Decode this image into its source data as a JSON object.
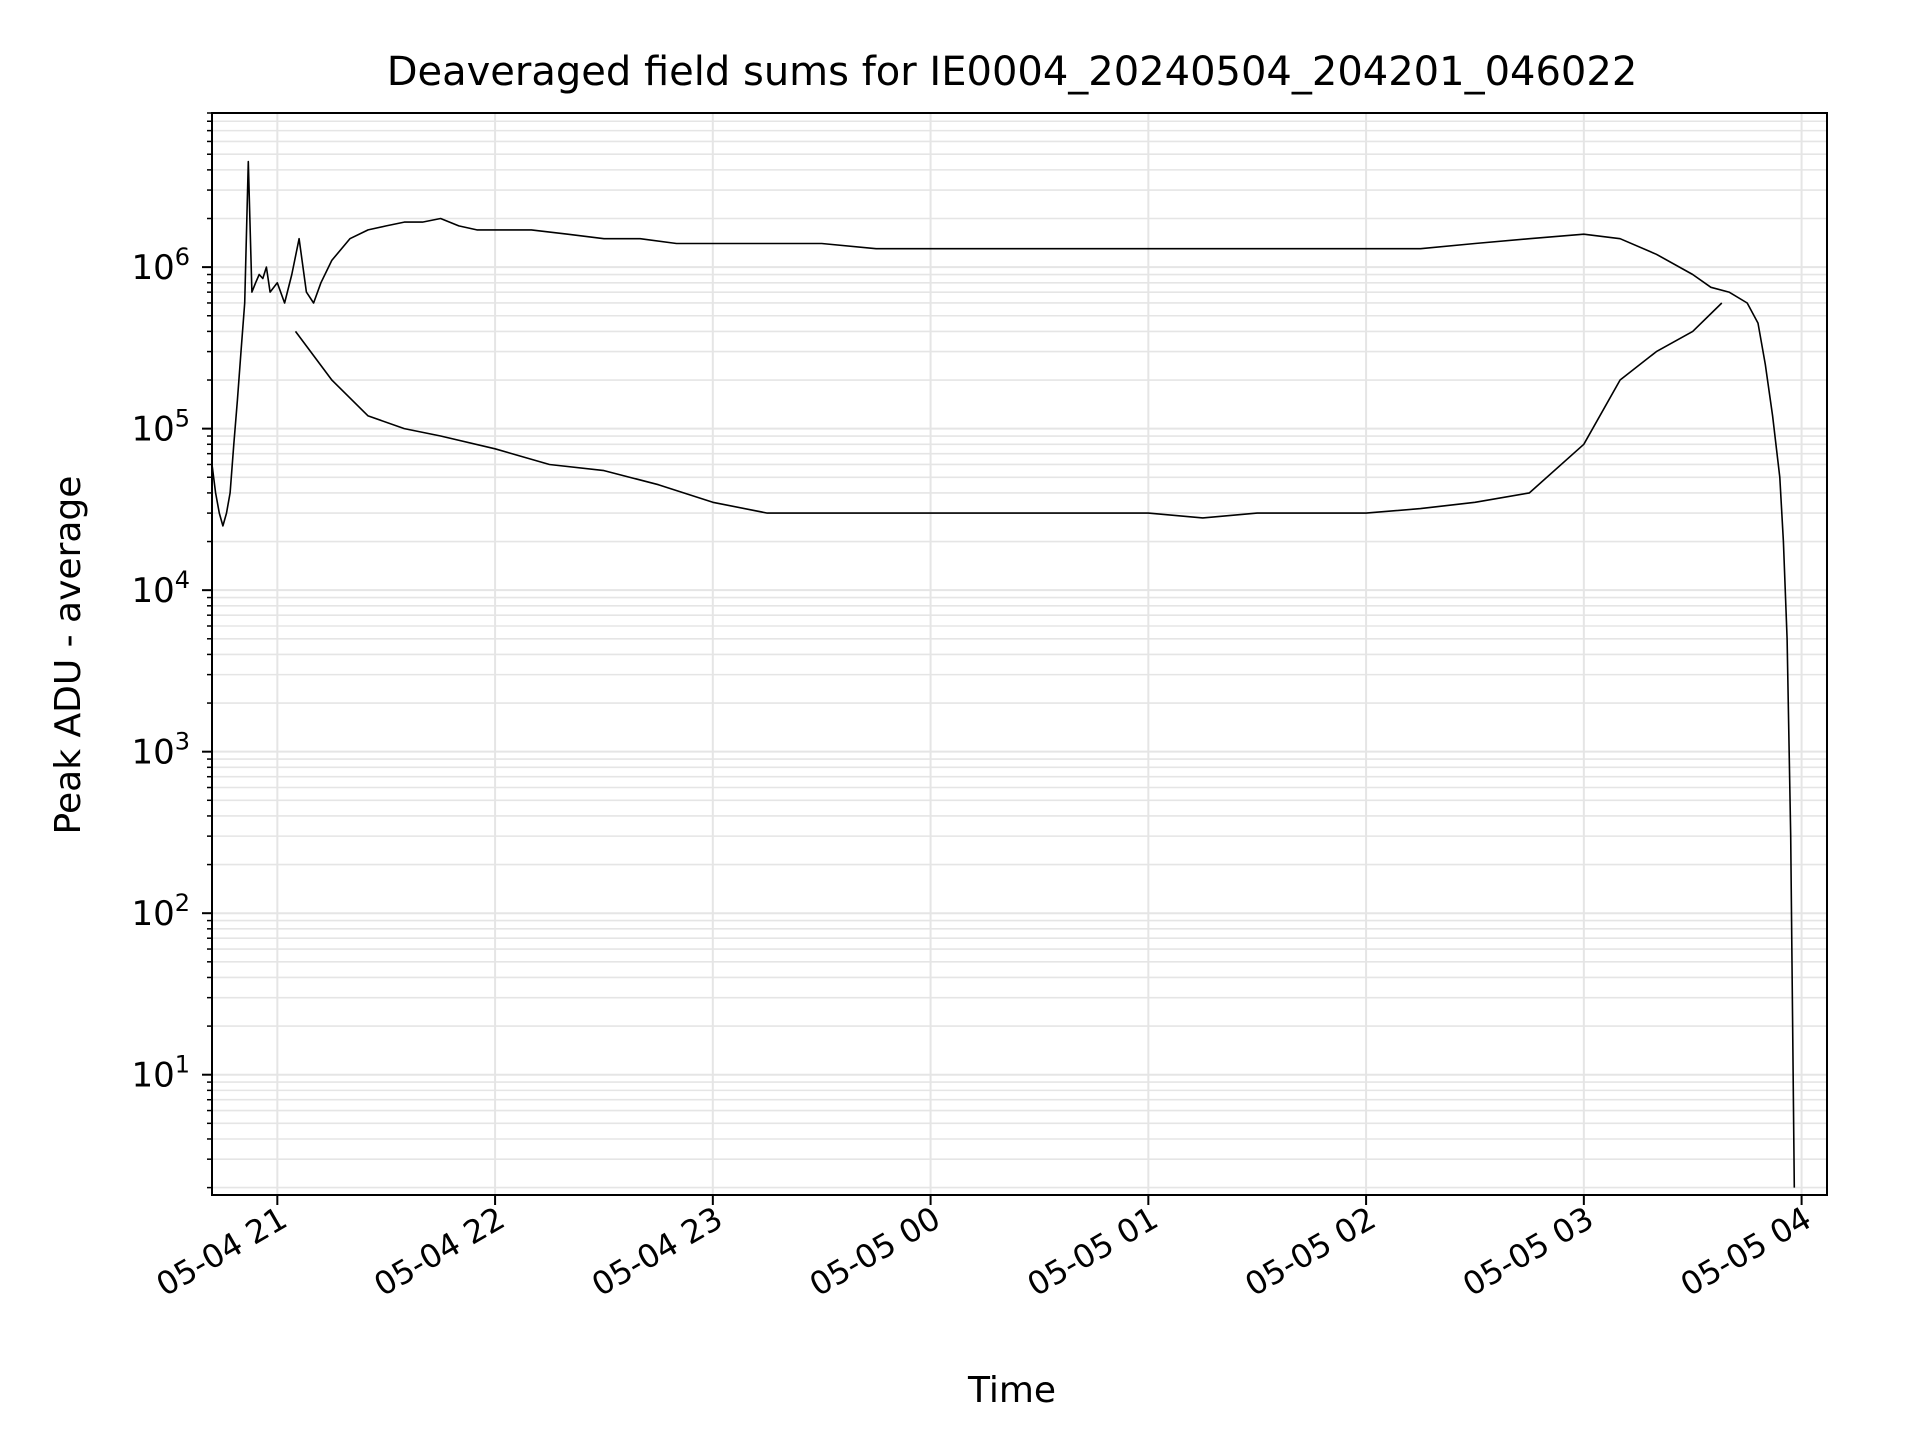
{
  "chart_data": {
    "type": "line",
    "title": "Deaveraged field sums for IE0004_20240504_204201_046022",
    "xlabel": "Time",
    "ylabel": "Peak ADU - average",
    "yscale": "log",
    "xlim": [
      "2024-05-04 20:42",
      "2024-05-05 04:07"
    ],
    "ylim": [
      1.8,
      9000000
    ],
    "grid": true,
    "line_color": "#000000",
    "grid_color": "#e5e5e5",
    "x_ticks": [
      {
        "label": "05-04 21",
        "value": "2024-05-04 21:00"
      },
      {
        "label": "05-04 22",
        "value": "2024-05-04 22:00"
      },
      {
        "label": "05-04 23",
        "value": "2024-05-04 23:00"
      },
      {
        "label": "05-05 00",
        "value": "2024-05-05 00:00"
      },
      {
        "label": "05-05 01",
        "value": "2024-05-05 01:00"
      },
      {
        "label": "05-05 02",
        "value": "2024-05-05 02:00"
      },
      {
        "label": "05-05 03",
        "value": "2024-05-05 03:00"
      },
      {
        "label": "05-05 04",
        "value": "2024-05-05 04:00"
      }
    ],
    "y_ticks": [
      {
        "base": "10",
        "exp": "1",
        "value": 10
      },
      {
        "base": "10",
        "exp": "2",
        "value": 100
      },
      {
        "base": "10",
        "exp": "3",
        "value": 1000
      },
      {
        "base": "10",
        "exp": "4",
        "value": 10000
      },
      {
        "base": "10",
        "exp": "5",
        "value": 100000
      },
      {
        "base": "10",
        "exp": "6",
        "value": 1000000
      }
    ],
    "series": [
      {
        "x": [
          "2024-05-04 20:42",
          "2024-05-04 20:43",
          "2024-05-04 20:44",
          "2024-05-04 20:45",
          "2024-05-04 20:46",
          "2024-05-04 20:47",
          "2024-05-04 20:48",
          "2024-05-04 20:49",
          "2024-05-04 20:50",
          "2024-05-04 20:51",
          "2024-05-04 20:52",
          "2024-05-04 20:53",
          "2024-05-04 20:54",
          "2024-05-04 20:55",
          "2024-05-04 20:56",
          "2024-05-04 20:57",
          "2024-05-04 20:58",
          "2024-05-04 21:00",
          "2024-05-04 21:02",
          "2024-05-04 21:04",
          "2024-05-04 21:06",
          "2024-05-04 21:08",
          "2024-05-04 21:10",
          "2024-05-04 21:12",
          "2024-05-04 21:15",
          "2024-05-04 21:20",
          "2024-05-04 21:25",
          "2024-05-04 21:30",
          "2024-05-04 21:35",
          "2024-05-04 21:40",
          "2024-05-04 21:45",
          "2024-05-04 21:50",
          "2024-05-04 21:55",
          "2024-05-04 22:00",
          "2024-05-04 22:10",
          "2024-05-04 22:20",
          "2024-05-04 22:30",
          "2024-05-04 22:40",
          "2024-05-04 22:50",
          "2024-05-04 23:00",
          "2024-05-04 23:15",
          "2024-05-04 23:30",
          "2024-05-04 23:45",
          "2024-05-05 00:00",
          "2024-05-05 00:20",
          "2024-05-05 00:40",
          "2024-05-05 01:00",
          "2024-05-05 01:20",
          "2024-05-05 01:40",
          "2024-05-05 02:00",
          "2024-05-05 02:15",
          "2024-05-05 02:30",
          "2024-05-05 02:45",
          "2024-05-05 03:00",
          "2024-05-05 03:10",
          "2024-05-05 03:20",
          "2024-05-05 03:30",
          "2024-05-05 03:35",
          "2024-05-05 03:40",
          "2024-05-05 03:45",
          "2024-05-05 03:48",
          "2024-05-05 03:50",
          "2024-05-05 03:52",
          "2024-05-05 03:54",
          "2024-05-05 03:55",
          "2024-05-05 03:56",
          "2024-05-05 03:57",
          "2024-05-05 03:58"
        ],
        "y": [
          60000,
          40000,
          30000,
          25000,
          30000,
          40000,
          80000,
          150000,
          300000,
          600000,
          4500000,
          700000,
          800000,
          900000,
          850000,
          1000000,
          700000,
          800000,
          600000,
          900000,
          1500000,
          700000,
          600000,
          800000,
          1100000,
          1500000,
          1700000,
          1800000,
          1900000,
          1900000,
          2000000,
          1800000,
          1700000,
          1700000,
          1700000,
          1600000,
          1500000,
          1500000,
          1400000,
          1400000,
          1400000,
          1400000,
          1300000,
          1300000,
          1300000,
          1300000,
          1300000,
          1300000,
          1300000,
          1300000,
          1300000,
          1400000,
          1500000,
          1600000,
          1500000,
          1200000,
          900000,
          750000,
          700000,
          600000,
          450000,
          250000,
          120000,
          50000,
          20000,
          5000,
          300,
          2
        ]
      },
      {
        "x": [
          "2024-05-04 21:05",
          "2024-05-04 21:15",
          "2024-05-04 21:25",
          "2024-05-04 21:35",
          "2024-05-04 21:45",
          "2024-05-04 22:00",
          "2024-05-04 22:15",
          "2024-05-04 22:30",
          "2024-05-04 22:45",
          "2024-05-04 23:00",
          "2024-05-04 23:15",
          "2024-05-04 23:30",
          "2024-05-04 23:45",
          "2024-05-05 00:00",
          "2024-05-05 00:15",
          "2024-05-05 00:30",
          "2024-05-05 00:45",
          "2024-05-05 01:00",
          "2024-05-05 01:15",
          "2024-05-05 01:30",
          "2024-05-05 01:45",
          "2024-05-05 02:00",
          "2024-05-05 02:15",
          "2024-05-05 02:30",
          "2024-05-05 02:45",
          "2024-05-05 03:00",
          "2024-05-05 03:10",
          "2024-05-05 03:20",
          "2024-05-05 03:30",
          "2024-05-05 03:38"
        ],
        "y": [
          400000,
          200000,
          120000,
          100000,
          90000,
          75000,
          60000,
          55000,
          45000,
          35000,
          30000,
          30000,
          30000,
          30000,
          30000,
          30000,
          30000,
          30000,
          28000,
          30000,
          30000,
          30000,
          32000,
          35000,
          40000,
          80000,
          200000,
          300000,
          400000,
          600000
        ]
      }
    ]
  }
}
